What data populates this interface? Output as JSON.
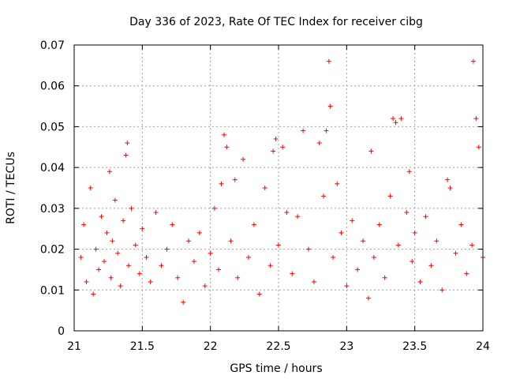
{
  "chart_data": {
    "type": "scatter",
    "title": "Day 336 of 2023, Rate Of TEC Index for receiver cibg",
    "xlabel": "GPS time / hours",
    "ylabel": "ROTI / TECUs",
    "xlim": [
      21,
      24
    ],
    "ylim": [
      0,
      0.07
    ],
    "x_ticks": [
      "21",
      "21.5",
      "22",
      "22.5",
      "23",
      "23.5",
      "24"
    ],
    "y_ticks": [
      "0",
      "0.01",
      "0.02",
      "0.03",
      "0.04",
      "0.05",
      "0.06",
      "0.07"
    ],
    "grid": true,
    "marker": "+",
    "series": [
      {
        "name": "cibg",
        "color": "#ff0000",
        "x": [
          21.05,
          21.07,
          21.09,
          21.12,
          21.14,
          21.16,
          21.18,
          21.2,
          21.22,
          21.24,
          21.26,
          21.27,
          21.28,
          21.3,
          21.32,
          21.34,
          21.36,
          21.38,
          21.39,
          21.4,
          21.42,
          21.45,
          21.48,
          21.5,
          21.53,
          21.56,
          21.6,
          21.64,
          21.68,
          21.72,
          21.76,
          21.8,
          21.84,
          21.88,
          21.92,
          21.96,
          22.0,
          22.03,
          22.06,
          22.08,
          22.1,
          22.12,
          22.15,
          22.18,
          22.2,
          22.24,
          22.28,
          22.32,
          22.36,
          22.4,
          22.44,
          22.46,
          22.48,
          22.5,
          22.53,
          22.56,
          22.6,
          22.64,
          22.68,
          22.72,
          22.76,
          22.8,
          22.83,
          22.85,
          22.87,
          22.88,
          22.9,
          22.93,
          22.96,
          23.0,
          23.04,
          23.08,
          23.12,
          23.16,
          23.18,
          23.2,
          23.24,
          23.28,
          23.32,
          23.34,
          23.36,
          23.38,
          23.4,
          23.44,
          23.46,
          23.48,
          23.5,
          23.54,
          23.58,
          23.62,
          23.66,
          23.7,
          23.74,
          23.76,
          23.8,
          23.84,
          23.88,
          23.92,
          23.93,
          23.95,
          23.97,
          24.0
        ],
        "y": [
          0.018,
          0.026,
          0.012,
          0.035,
          0.009,
          0.02,
          0.015,
          0.028,
          0.017,
          0.024,
          0.039,
          0.013,
          0.022,
          0.032,
          0.019,
          0.011,
          0.027,
          0.043,
          0.046,
          0.016,
          0.03,
          0.021,
          0.014,
          0.025,
          0.018,
          0.012,
          0.029,
          0.016,
          0.02,
          0.026,
          0.013,
          0.007,
          0.022,
          0.017,
          0.024,
          0.011,
          0.019,
          0.03,
          0.015,
          0.036,
          0.048,
          0.045,
          0.022,
          0.037,
          0.013,
          0.042,
          0.018,
          0.026,
          0.009,
          0.035,
          0.016,
          0.044,
          0.047,
          0.021,
          0.045,
          0.029,
          0.014,
          0.028,
          0.049,
          0.02,
          0.012,
          0.046,
          0.033,
          0.049,
          0.066,
          0.055,
          0.018,
          0.036,
          0.024,
          0.011,
          0.027,
          0.015,
          0.022,
          0.008,
          0.044,
          0.018,
          0.026,
          0.013,
          0.033,
          0.052,
          0.051,
          0.021,
          0.052,
          0.029,
          0.039,
          0.017,
          0.024,
          0.012,
          0.028,
          0.016,
          0.022,
          0.01,
          0.037,
          0.035,
          0.019,
          0.026,
          0.014,
          0.021,
          0.066,
          0.052,
          0.045,
          0.018
        ]
      }
    ]
  }
}
